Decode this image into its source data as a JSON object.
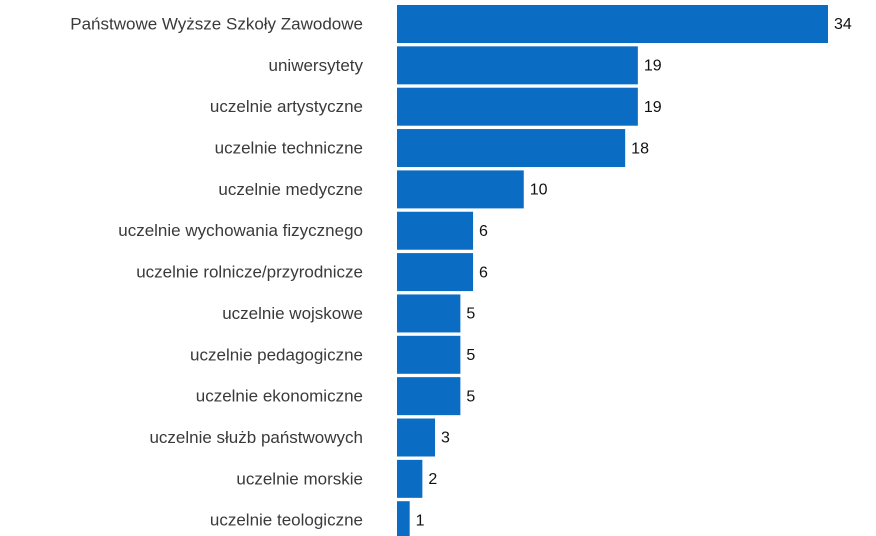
{
  "chart_data": {
    "type": "bar",
    "orientation": "horizontal",
    "color": "#0b6cc3",
    "categories": [
      "Państwowe Wyższe Szkoły Zawodowe",
      "uniwersytety",
      "uczelnie artystyczne",
      "uczelnie techniczne",
      "uczelnie medyczne",
      "uczelnie wychowania fizycznego",
      "uczelnie rolnicze/przyrodnicze",
      "uczelnie wojskowe",
      "uczelnie pedagogiczne",
      "uczelnie ekonomiczne",
      "uczelnie służb państwowych",
      "uczelnie morskie",
      "uczelnie teologiczne"
    ],
    "values": [
      34,
      19,
      19,
      18,
      10,
      6,
      6,
      5,
      5,
      5,
      3,
      2,
      1
    ]
  }
}
